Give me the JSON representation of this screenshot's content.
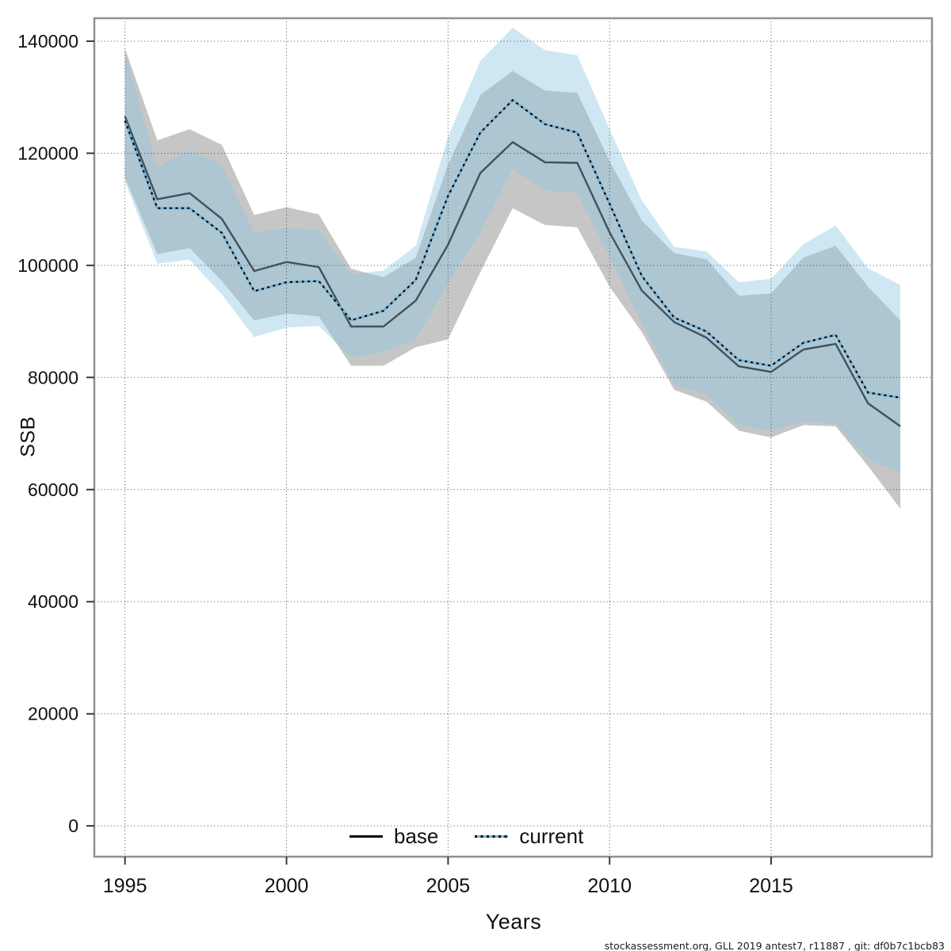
{
  "footnote": "stockassessment.org, GLL 2019 antest7, r11887 , git: df0b7c1bcb83",
  "chart_data": {
    "type": "line",
    "title": "",
    "xlabel": "Years",
    "ylabel": "SSB",
    "grid": true,
    "legend_position": "bottom-center-inside",
    "xlim": [
      1994.05,
      2019.98
    ],
    "ylim": [
      -5500,
      144100
    ],
    "xticks": [
      1995,
      2000,
      2005,
      2010,
      2015
    ],
    "yticks": [
      0,
      20000,
      40000,
      60000,
      80000,
      100000,
      120000,
      140000
    ],
    "x": [
      1995,
      1996,
      1997,
      1998,
      1999,
      2000,
      2001,
      2002,
      2003,
      2004,
      2005,
      2006,
      2007,
      2008,
      2009,
      2010,
      2011,
      2012,
      2013,
      2014,
      2015,
      2016,
      2017,
      2018,
      2019
    ],
    "series": [
      {
        "name": "base",
        "line_style": "solid",
        "line_color": "#3d5360",
        "legend_color": "#000000",
        "band_color": "#c6c6c6",
        "values": [
          126600,
          111800,
          112900,
          108300,
          99000,
          100600,
          99700,
          89100,
          89100,
          93700,
          103700,
          116500,
          122000,
          118400,
          118300,
          105900,
          95500,
          89900,
          87100,
          82000,
          81000,
          85000,
          86000,
          75400,
          71300
        ],
        "lo": [
          115600,
          102000,
          103100,
          97200,
          90200,
          91400,
          90900,
          82100,
          82100,
          85400,
          86800,
          98800,
          110200,
          107200,
          106800,
          96200,
          88100,
          77800,
          75700,
          70500,
          69300,
          71500,
          71300,
          64200,
          56600
        ],
        "hi": [
          138700,
          122300,
          124300,
          121500,
          109000,
          110400,
          109100,
          99400,
          97900,
          101400,
          118000,
          130400,
          134700,
          131200,
          130800,
          118600,
          108000,
          102200,
          101100,
          94600,
          95000,
          101400,
          103500,
          96200,
          90200
        ]
      },
      {
        "name": "current",
        "line_style": "dotted",
        "line_color": "#000000",
        "underlay_color": "#74b3dc",
        "band_color": "rgba(143,199,225,0.43)",
        "values": [
          125800,
          110200,
          110200,
          105800,
          95400,
          97000,
          97200,
          90200,
          91900,
          97400,
          112400,
          123700,
          129500,
          125200,
          123700,
          111000,
          98100,
          90700,
          88200,
          83100,
          82100,
          86200,
          87600,
          77300,
          76400
        ],
        "lo": [
          114900,
          100300,
          101000,
          94800,
          87200,
          88900,
          89200,
          83500,
          84600,
          86800,
          96700,
          105900,
          117200,
          113400,
          112900,
          101600,
          89600,
          78600,
          76900,
          71500,
          70500,
          72100,
          71700,
          65400,
          63000
        ],
        "hi": [
          138200,
          117500,
          120500,
          117900,
          105900,
          106700,
          106300,
          98400,
          99100,
          103500,
          123000,
          136500,
          142400,
          138400,
          137500,
          124300,
          111600,
          103300,
          102500,
          97000,
          97600,
          103800,
          107100,
          99500,
          96500
        ]
      }
    ]
  }
}
